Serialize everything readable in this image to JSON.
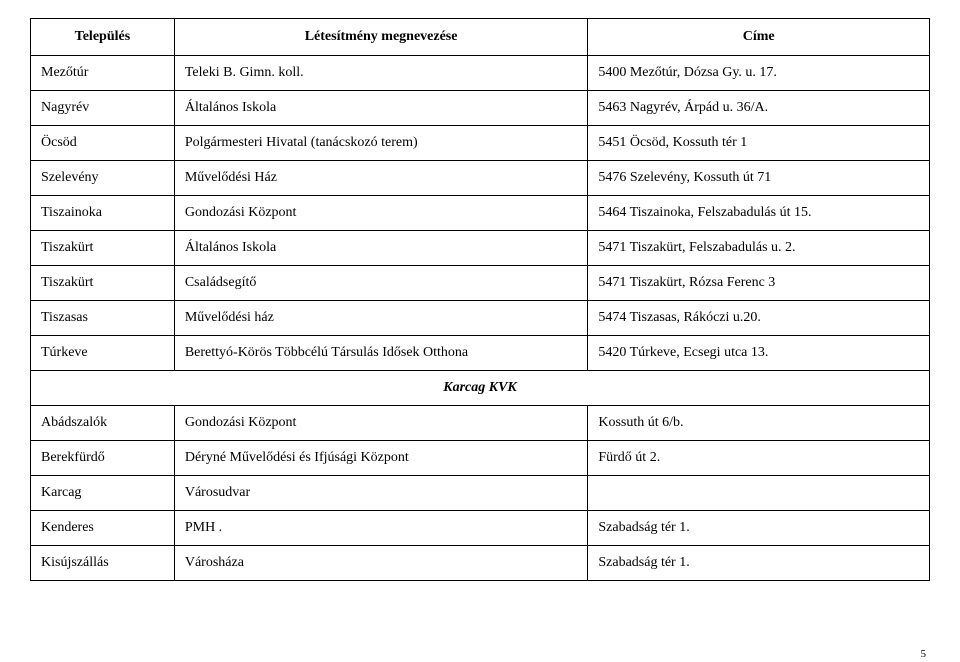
{
  "header": {
    "col1": "Település",
    "col2": "Létesítmény megnevezése",
    "col3": "Címe"
  },
  "rows": [
    {
      "c1": "Mezőtúr",
      "c2": "Teleki B. Gimn. koll.",
      "c3": "5400 Mezőtúr, Dózsa Gy. u. 17."
    },
    {
      "c1": "Nagyrév",
      "c2": "Általános Iskola",
      "c3": "5463 Nagyrév, Árpád u. 36/A."
    },
    {
      "c1": "Öcsöd",
      "c2": "Polgármesteri Hivatal (tanácskozó terem)",
      "c3": "5451 Öcsöd, Kossuth tér 1"
    },
    {
      "c1": "Szelevény",
      "c2": "Művelődési Ház",
      "c3": "5476 Szelevény, Kossuth út 71"
    },
    {
      "c1": "Tiszainoka",
      "c2": "Gondozási Központ",
      "c3": "5464 Tiszainoka, Felszabadulás út 15."
    },
    {
      "c1": "Tiszakürt",
      "c2": "Általános Iskola",
      "c3": "5471 Tiszakürt, Felszabadulás u. 2."
    },
    {
      "c1": "Tiszakürt",
      "c2": "Családsegítő",
      "c3": "5471 Tiszakürt, Rózsa Ferenc 3"
    },
    {
      "c1": "Tiszasas",
      "c2": "Művelődési ház",
      "c3": "5474 Tiszasas, Rákóczi u.20."
    },
    {
      "c1": "Túrkeve",
      "c2": "Berettyó-Körös Többcélú Társulás Idősek Otthona",
      "c3": "5420  Túrkeve, Ecsegi utca 13."
    }
  ],
  "section": "Karcag KVK",
  "rows2": [
    {
      "c1": "Abádszalók",
      "c2": "Gondozási Központ",
      "c3": "Kossuth út 6/b."
    },
    {
      "c1": "Berekfürdő",
      "c2": " Déryné Művelődési és Ifjúsági Központ",
      "c3": "Fürdő út 2."
    },
    {
      "c1": "Karcag",
      "c2": "Városudvar",
      "c3": ""
    },
    {
      "c1": "Kenderes",
      "c2": "PMH .",
      "c3": "Szabadság tér 1."
    },
    {
      "c1": "Kisújszállás",
      "c2": "Városháza",
      "c3": "Szabadság tér 1."
    }
  ],
  "page_number": "5"
}
